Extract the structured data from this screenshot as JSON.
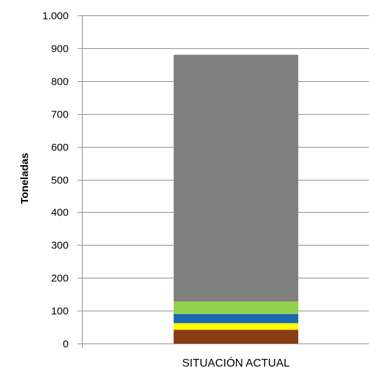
{
  "chart_data": {
    "type": "bar",
    "stacked": true,
    "title": "",
    "xlabel": "",
    "ylabel": "Toneladas",
    "ylim": [
      0,
      1000
    ],
    "yticks": [
      0,
      100,
      200,
      300,
      400,
      500,
      600,
      700,
      800,
      900,
      1000
    ],
    "ytick_labels": [
      "0",
      "100",
      "200",
      "300",
      "400",
      "500",
      "600",
      "700",
      "800",
      "900",
      "1.000"
    ],
    "grid": true,
    "legend": "none",
    "categories": [
      "SITUACIÓN ACTUAL"
    ],
    "series": [
      {
        "values": [
          42
        ],
        "color": "#8b3a16"
      },
      {
        "values": [
          20
        ],
        "color": "#ffff00"
      },
      {
        "values": [
          28
        ],
        "color": "#1b6ab2"
      },
      {
        "values": [
          38
        ],
        "color": "#92d050"
      },
      {
        "values": [
          752
        ],
        "color": "#808080"
      }
    ]
  }
}
